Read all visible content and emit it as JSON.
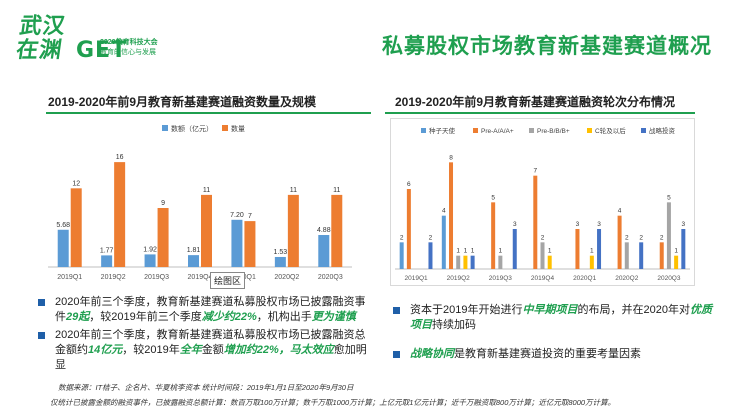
{
  "logo": {
    "calligraphy_line1": "武汉",
    "calligraphy_line2": "在渊",
    "get": "GET",
    "conference": "2020教育科技大会",
    "slogan": "教育的信心与发展"
  },
  "page_title": "私募股权市场教育新基建赛道概况",
  "left_chart_title": "2019-2020年前9月教育新基建赛道融资数量及规模",
  "right_chart_title": "2019-2020年前9月教育新基建赛道融资轮次分布情况",
  "zoom_tag": "绘图区",
  "left_bullets": [
    {
      "parts": [
        {
          "t": "2020年前三个季度，教育新基建赛道私募股权市场已披露融资事件",
          "h": false
        },
        {
          "t": "29起",
          "h": true
        },
        {
          "t": "，较2019年前三个季度",
          "h": false
        },
        {
          "t": "减少约22%",
          "h": true
        },
        {
          "t": "，机构出手",
          "h": false
        },
        {
          "t": "更为谨慎",
          "h": true
        }
      ]
    },
    {
      "parts": [
        {
          "t": "2020年前三个季度，教育新基建赛道私募股权市场已披露融资总金额约",
          "h": false
        },
        {
          "t": "14亿元",
          "h": true
        },
        {
          "t": "，较2019年",
          "h": false
        },
        {
          "t": "全年",
          "h": true
        },
        {
          "t": "金额",
          "h": false
        },
        {
          "t": "增加约22%，马太效应",
          "h": true
        },
        {
          "t": "愈加明显",
          "h": false
        }
      ]
    }
  ],
  "right_bullets": [
    {
      "parts": [
        {
          "t": "资本于2019年开始进行",
          "h": false
        },
        {
          "t": "中早期项目",
          "h": true
        },
        {
          "t": "的布局，并在2020年对",
          "h": false
        },
        {
          "t": "优质项目",
          "h": true
        },
        {
          "t": "持续加码",
          "h": false
        }
      ]
    },
    {
      "parts": [
        {
          "t": "战略协同",
          "h": true
        },
        {
          "t": "是教育新基建赛道投资的重要考量因素",
          "h": false
        }
      ]
    }
  ],
  "source": "数据来源：IT桔子、企名片、华夏桃李资本   统计时间段：2019年1月1日至2020年9月30日",
  "note": "仅统计已披露金额的融资事件，已披露融资总额计算：数百万取100万计算；数千万取1000万计算；上亿元取1亿元计算；近千万融资取800万计算；近亿元取8000万计算。",
  "colors": {
    "green": "#1f9f4f",
    "blue": "#5b9bd5",
    "orange": "#ed7d31",
    "gray": "#a5a5a5",
    "yellow": "#ffc000",
    "darkblue": "#4472c4"
  },
  "chart_data": [
    {
      "type": "bar",
      "title": "2019-2020年前9月教育新基建赛道融资数量及规模",
      "categories": [
        "2019Q1",
        "2019Q2",
        "2019Q3",
        "2019Q4",
        "2020Q1",
        "2020Q2",
        "2020Q3"
      ],
      "series": [
        {
          "name": "数额（亿元）",
          "color": "#5b9bd5",
          "values": [
            5.68,
            1.77,
            1.92,
            1.81,
            7.2,
            1.53,
            4.88
          ]
        },
        {
          "name": "数量",
          "color": "#ed7d31",
          "values": [
            12,
            16,
            9,
            11,
            7,
            11,
            11
          ]
        }
      ],
      "labels": [
        [
          "5.68",
          "1.77",
          "1.92",
          "1.81",
          "7.20",
          "1.53",
          "4.88"
        ],
        [
          "12",
          "16",
          "9",
          "11",
          "7",
          "11",
          "11"
        ]
      ],
      "ylim": [
        0,
        18
      ],
      "legend": "top",
      "grid": false
    },
    {
      "type": "bar",
      "title": "2019-2020年前9月教育新基建赛道融资轮次分布情况",
      "categories": [
        "2019Q1",
        "2019Q2",
        "2019Q3",
        "2019Q4",
        "2020Q1",
        "2020Q2",
        "2020Q3"
      ],
      "series": [
        {
          "name": "种子天使",
          "color": "#5b9bd5",
          "values": [
            2,
            4,
            0,
            0,
            0,
            0,
            0
          ]
        },
        {
          "name": "Pre-A/A/A+",
          "color": "#ed7d31",
          "values": [
            6,
            8,
            5,
            7,
            3,
            4,
            2
          ]
        },
        {
          "name": "Pre-B/B/B+",
          "color": "#a5a5a5",
          "values": [
            0,
            1,
            1,
            2,
            0,
            2,
            5
          ]
        },
        {
          "name": "C轮及以后",
          "color": "#ffc000",
          "values": [
            0,
            1,
            0,
            1,
            1,
            0,
            1
          ]
        },
        {
          "name": "战略投资",
          "color": "#4472c4",
          "values": [
            2,
            1,
            3,
            0,
            3,
            2,
            3
          ]
        }
      ],
      "ylim": [
        0,
        9
      ],
      "legend": "top",
      "grid": false
    }
  ]
}
